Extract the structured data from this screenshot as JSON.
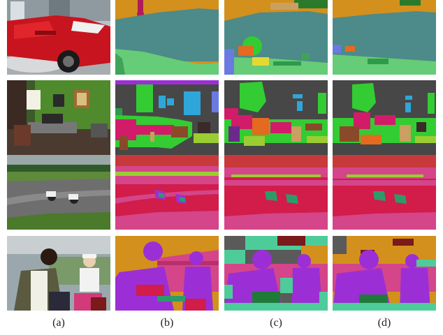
{
  "figure": {
    "column_labels": [
      "(a)",
      "(b)",
      "(c)",
      "(d)"
    ]
  },
  "colors": {
    "wall_teal": "#4d8a8a",
    "sky_orange": "#d3901c",
    "floor_green": "#66cc77",
    "road_crimson": "#d21c4a",
    "person_purple": "#9b2fd5",
    "grass_pink": "#d4458a",
    "dark_gray": "#474747"
  }
}
